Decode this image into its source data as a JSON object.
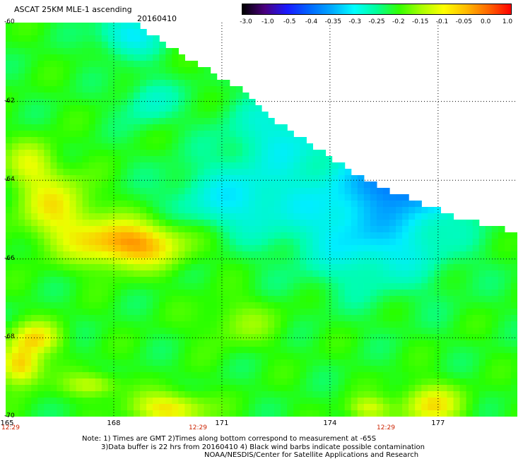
{
  "header": {
    "title": "ASCAT 25KM MLE-1 ascending",
    "date": "20160410"
  },
  "colorbar": {
    "labels": [
      "-3.0",
      "-1.0",
      "-0.5",
      "-0.4",
      "-0.35",
      "-0.3",
      "-0.25",
      "-0.2",
      "-0.15",
      "-0.1",
      "-0.05",
      "0.0",
      "1.0"
    ],
    "colors": [
      "#000000",
      "#4b007f",
      "#1a1aff",
      "#0066ff",
      "#00aaff",
      "#00ffff",
      "#00ff99",
      "#33ff00",
      "#aaff00",
      "#ffff00",
      "#ffbb00",
      "#ff6600",
      "#ff0000"
    ]
  },
  "map": {
    "lat_labels": [
      "-60",
      "-62",
      "-64",
      "-66",
      "-68",
      "-70"
    ],
    "lon_labels": [
      "165",
      "168",
      "171",
      "174",
      "177"
    ],
    "pass_times": [
      "12:29",
      "12:29",
      "12:29"
    ]
  },
  "notes": {
    "line1": "Note: 1) Times are GMT 2)Times along bottom correspond to measurement at -65S",
    "line2": "3)Data buffer is 22 hrs from 20160410 4) Black wind barbs indicate possible contamination",
    "line3": "NOAA/NESDIS/Center for Satellite Applications and Research"
  }
}
